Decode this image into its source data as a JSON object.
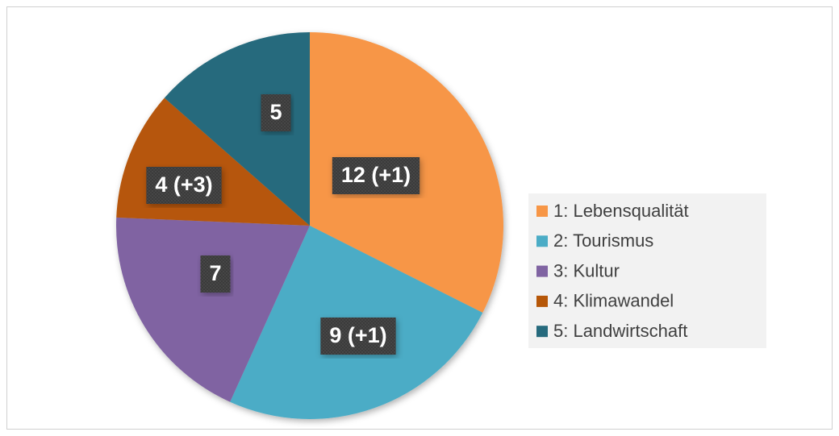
{
  "chart_data": {
    "type": "pie",
    "categories": [
      "1: Lebensqualität",
      "2: Tourismus",
      "3: Kultur",
      "4: Klimawandel",
      "5: Landwirtschaft"
    ],
    "values": [
      12,
      9,
      7,
      4,
      5
    ],
    "value_labels": [
      "12 (+1)",
      "9 (+1)",
      "7",
      "4 (+3)",
      "5"
    ],
    "colors": [
      "#f79646",
      "#4bacc6",
      "#8064a2",
      "#b65708",
      "#266a7d"
    ],
    "legend": "right"
  }
}
